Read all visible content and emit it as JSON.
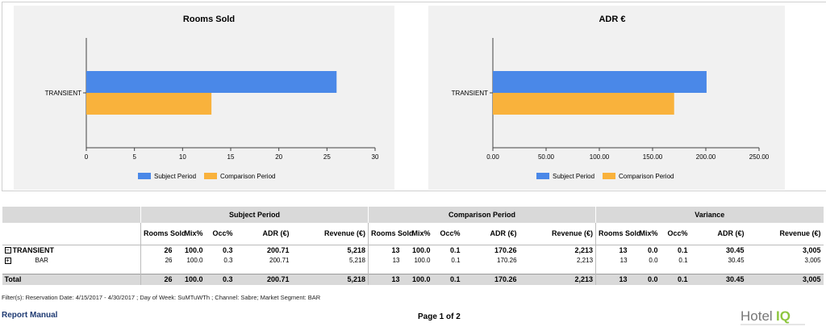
{
  "chart_data": [
    {
      "type": "bar",
      "orientation": "horizontal",
      "title": "Rooms Sold",
      "categories": [
        "TRANSIENT"
      ],
      "series": [
        {
          "name": "Subject Period",
          "values": [
            26
          ],
          "color": "#4a88e8"
        },
        {
          "name": "Comparison Period",
          "values": [
            13
          ],
          "color": "#f9b23c"
        }
      ],
      "xlim": [
        0,
        30
      ],
      "xticks": [
        "0",
        "5",
        "10",
        "15",
        "20",
        "25",
        "30"
      ],
      "legend_position": "bottom",
      "grid": false
    },
    {
      "type": "bar",
      "orientation": "horizontal",
      "title": "ADR €",
      "categories": [
        "TRANSIENT"
      ],
      "series": [
        {
          "name": "Subject Period",
          "values": [
            200.71
          ],
          "color": "#4a88e8"
        },
        {
          "name": "Comparison Period",
          "values": [
            170.26
          ],
          "color": "#f9b23c"
        }
      ],
      "xlim": [
        0,
        250
      ],
      "xticks": [
        "0.00",
        "50.00",
        "100.00",
        "150.00",
        "200.00",
        "250.00"
      ],
      "legend_position": "bottom",
      "grid": false
    }
  ],
  "table": {
    "groups": [
      "Subject Period",
      "Comparison Period",
      "Variance"
    ],
    "columns": [
      "Rooms Sold",
      "Mix%",
      "Occ%",
      "ADR (€)",
      "Revenue (€)"
    ],
    "rows": [
      {
        "label": "TRANSIENT",
        "toggle": "−",
        "bold": true,
        "values": [
          "26",
          "100.0",
          "0.3",
          "200.71",
          "5,218",
          "13",
          "100.0",
          "0.1",
          "170.26",
          "2,213",
          "13",
          "0.0",
          "0.1",
          "30.45",
          "3,005"
        ]
      },
      {
        "label": "BAR",
        "toggle": "+",
        "bold": false,
        "values": [
          "26",
          "100.0",
          "0.3",
          "200.71",
          "5,218",
          "13",
          "100.0",
          "0.1",
          "170.26",
          "2,213",
          "13",
          "0.0",
          "0.1",
          "30.45",
          "3,005"
        ]
      }
    ],
    "total": {
      "label": "Total",
      "values": [
        "26",
        "100.0",
        "0.3",
        "200.71",
        "5,218",
        "13",
        "100.0",
        "0.1",
        "170.26",
        "2,213",
        "13",
        "0.0",
        "0.1",
        "30.45",
        "3,005"
      ]
    }
  },
  "footer": {
    "filters": "Filter(s): Reservation Date: 4/15/2017 - 4/30/2017 ; Day of Week: SuMTuWTh ; Channel: Sabre; Market Segment: BAR",
    "report_manual": "Report Manual",
    "page": "Page 1 of 2",
    "logo_text": "Hotel",
    "logo_accent": "IQ"
  },
  "colors": {
    "subject": "#4a88e8",
    "comparison": "#f9b23c",
    "header_bg": "#d9d9d9",
    "logo_green": "#8dc63f",
    "logo_gray": "#777777"
  }
}
